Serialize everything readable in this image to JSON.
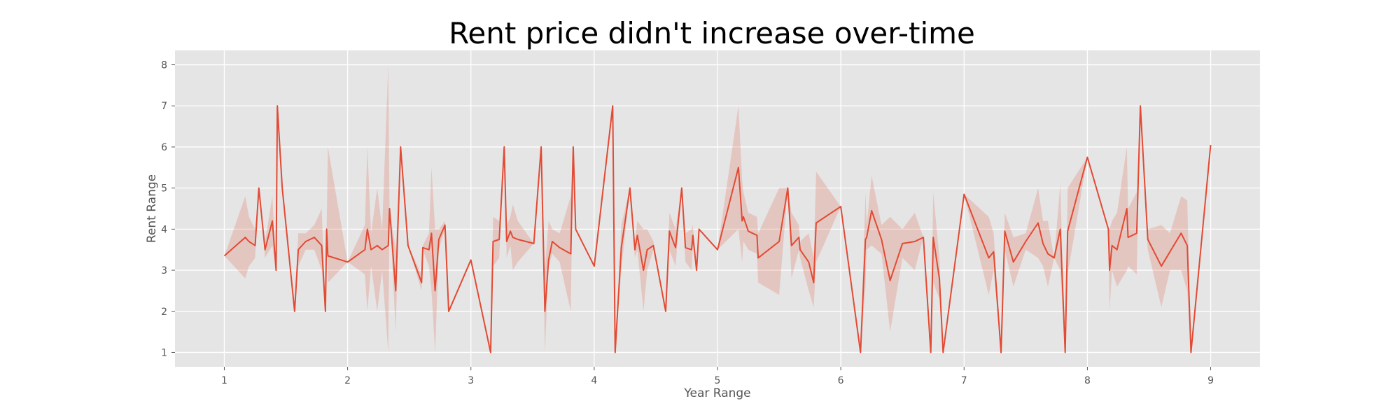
{
  "chart_data": {
    "type": "line",
    "title": "Rent price didn't increase over-time",
    "xlabel": "Year Range",
    "ylabel": "Rent Range",
    "xlim": [
      0.6,
      9.4
    ],
    "ylim": [
      0.65,
      8.35
    ],
    "xticks": [
      1,
      2,
      3,
      4,
      5,
      6,
      7,
      8,
      9
    ],
    "yticks": [
      1,
      2,
      3,
      4,
      5,
      6,
      7,
      8
    ],
    "grid": true,
    "legend": "none",
    "colors": {
      "line": "#E24A33",
      "band": "#E24A33",
      "plot_bg": "#E5E5E5",
      "grid": "#FFFFFF"
    },
    "series": [
      {
        "x": [
          1.0,
          1.17,
          1.2,
          1.25,
          1.28,
          1.33,
          1.39,
          1.42,
          1.43,
          1.47,
          1.57,
          1.6,
          1.66,
          1.73,
          1.79,
          1.82,
          1.83,
          1.84,
          2.0,
          2.14,
          2.16,
          2.19,
          2.24,
          2.28,
          2.33,
          2.34,
          2.39,
          2.43,
          2.49,
          2.6,
          2.61,
          2.66,
          2.68,
          2.71,
          2.74,
          2.79,
          2.82,
          3.0,
          3.16,
          3.18,
          3.23,
          3.27,
          3.29,
          3.32,
          3.34,
          3.38,
          3.51,
          3.57,
          3.6,
          3.63,
          3.66,
          3.72,
          3.81,
          3.83,
          3.85,
          4.0,
          4.15,
          4.17,
          4.22,
          4.29,
          4.33,
          4.35,
          4.4,
          4.43,
          4.48,
          4.58,
          4.61,
          4.66,
          4.71,
          4.74,
          4.79,
          4.8,
          4.83,
          4.85,
          5.0,
          5.17,
          5.2,
          5.21,
          5.25,
          5.32,
          5.33,
          5.5,
          5.57,
          5.6,
          5.66,
          5.67,
          5.74,
          5.78,
          5.8,
          6.0,
          6.16,
          6.2,
          6.21,
          6.25,
          6.33,
          6.4,
          6.5,
          6.6,
          6.67,
          6.73,
          6.75,
          6.8,
          6.83,
          7.0,
          7.2,
          7.24,
          7.3,
          7.33,
          7.4,
          7.5,
          7.6,
          7.64,
          7.68,
          7.73,
          7.78,
          7.82,
          7.84,
          8.0,
          8.17,
          8.18,
          8.2,
          8.24,
          8.32,
          8.33,
          8.4,
          8.43,
          8.49,
          8.6,
          8.67,
          8.76,
          8.81,
          8.84,
          9.0
        ],
        "y": [
          3.35,
          3.8,
          3.7,
          3.6,
          5.0,
          3.5,
          4.2,
          3.0,
          7.0,
          5.0,
          2.0,
          3.5,
          3.7,
          3.8,
          3.6,
          2.0,
          4.0,
          3.35,
          3.2,
          3.5,
          4.0,
          3.5,
          3.6,
          3.5,
          3.6,
          4.5,
          2.5,
          6.0,
          3.6,
          2.7,
          3.55,
          3.5,
          3.9,
          2.5,
          3.75,
          4.1,
          2.0,
          3.25,
          1.0,
          3.7,
          3.75,
          6.0,
          3.7,
          3.95,
          3.8,
          3.75,
          3.65,
          6.0,
          2.0,
          3.25,
          3.7,
          3.55,
          3.4,
          6.0,
          4.0,
          3.1,
          7.0,
          1.0,
          3.55,
          5.0,
          3.5,
          3.85,
          3.0,
          3.5,
          3.6,
          2.0,
          3.95,
          3.55,
          5.0,
          3.55,
          3.5,
          3.85,
          3.0,
          4.0,
          3.5,
          5.5,
          4.2,
          4.3,
          3.95,
          3.85,
          3.3,
          3.7,
          5.0,
          3.6,
          3.8,
          3.5,
          3.2,
          2.7,
          4.15,
          4.55,
          1.0,
          3.75,
          3.8,
          4.45,
          3.75,
          2.75,
          3.65,
          3.7,
          3.8,
          1.0,
          3.8,
          2.8,
          1.0,
          4.85,
          3.3,
          3.45,
          1.0,
          3.95,
          3.2,
          3.7,
          4.15,
          3.65,
          3.4,
          3.3,
          4.0,
          1.0,
          3.95,
          5.75,
          4.0,
          3.0,
          3.6,
          3.5,
          4.5,
          3.8,
          3.9,
          7.0,
          3.75,
          3.1,
          3.45,
          3.9,
          3.6,
          1.0,
          6.05
        ],
        "lo": [
          3.35,
          2.8,
          3.1,
          3.3,
          5.0,
          3.3,
          3.6,
          3.0,
          7.0,
          5.0,
          2.0,
          3.1,
          3.5,
          3.5,
          3.0,
          2.0,
          4.0,
          2.7,
          3.2,
          2.9,
          2.0,
          3.1,
          2.0,
          3.0,
          1.0,
          4.5,
          1.5,
          6.0,
          3.6,
          2.5,
          3.5,
          3.1,
          2.5,
          1.0,
          3.5,
          4.0,
          2.0,
          3.25,
          1.0,
          3.1,
          3.3,
          6.0,
          3.3,
          3.6,
          3.0,
          3.2,
          3.65,
          6.0,
          1.0,
          3.1,
          3.4,
          3.2,
          2.0,
          6.0,
          4.0,
          3.1,
          7.0,
          1.0,
          3.0,
          5.0,
          3.3,
          3.5,
          2.0,
          3.0,
          3.5,
          2.0,
          3.5,
          3.1,
          5.0,
          3.2,
          3.0,
          3.6,
          3.0,
          4.0,
          3.5,
          4.0,
          3.2,
          3.7,
          3.5,
          3.4,
          2.7,
          2.4,
          5.0,
          2.8,
          3.5,
          3.3,
          2.5,
          2.1,
          3.2,
          4.55,
          1.0,
          2.6,
          3.5,
          3.6,
          3.4,
          1.5,
          3.3,
          3.0,
          3.8,
          1.0,
          2.7,
          2.3,
          1.0,
          4.85,
          2.4,
          3.0,
          1.0,
          3.5,
          2.6,
          3.5,
          3.3,
          3.1,
          2.6,
          3.3,
          3.0,
          1.0,
          2.9,
          5.75,
          4.0,
          2.0,
          3.0,
          2.6,
          3.0,
          3.1,
          2.9,
          7.0,
          3.5,
          2.1,
          3.0,
          3.0,
          2.5,
          1.0,
          6.05
        ],
        "hi": [
          3.35,
          4.8,
          4.3,
          4.0,
          5.0,
          3.7,
          4.8,
          3.0,
          7.0,
          5.0,
          2.0,
          3.9,
          3.9,
          4.1,
          4.5,
          2.0,
          4.0,
          6.0,
          3.2,
          4.1,
          6.0,
          3.9,
          5.0,
          4.0,
          8.0,
          4.5,
          3.5,
          6.0,
          3.6,
          2.9,
          3.6,
          3.9,
          5.5,
          4.0,
          4.0,
          4.2,
          2.0,
          3.25,
          1.0,
          4.3,
          4.2,
          6.0,
          4.1,
          4.3,
          4.6,
          4.2,
          3.65,
          6.0,
          3.0,
          4.2,
          4.0,
          3.9,
          4.8,
          6.0,
          4.0,
          3.1,
          7.0,
          1.0,
          4.1,
          5.0,
          3.7,
          4.2,
          4.0,
          4.0,
          3.7,
          2.0,
          4.4,
          4.0,
          5.0,
          3.9,
          4.0,
          4.1,
          3.0,
          4.0,
          3.5,
          7.0,
          5.2,
          4.9,
          4.4,
          4.3,
          3.9,
          5.0,
          5.0,
          4.4,
          4.1,
          3.7,
          3.9,
          3.3,
          5.4,
          4.55,
          1.0,
          4.9,
          4.1,
          5.3,
          4.1,
          4.3,
          4.0,
          4.4,
          3.8,
          1.0,
          4.9,
          3.3,
          1.0,
          4.85,
          4.3,
          3.9,
          1.0,
          4.4,
          3.8,
          3.9,
          5.0,
          4.2,
          4.2,
          3.3,
          5.1,
          1.0,
          5.0,
          5.75,
          4.0,
          4.0,
          4.2,
          4.4,
          6.0,
          4.5,
          4.9,
          7.0,
          4.0,
          4.1,
          3.9,
          4.8,
          4.7,
          1.0,
          6.05
        ]
      }
    ]
  }
}
